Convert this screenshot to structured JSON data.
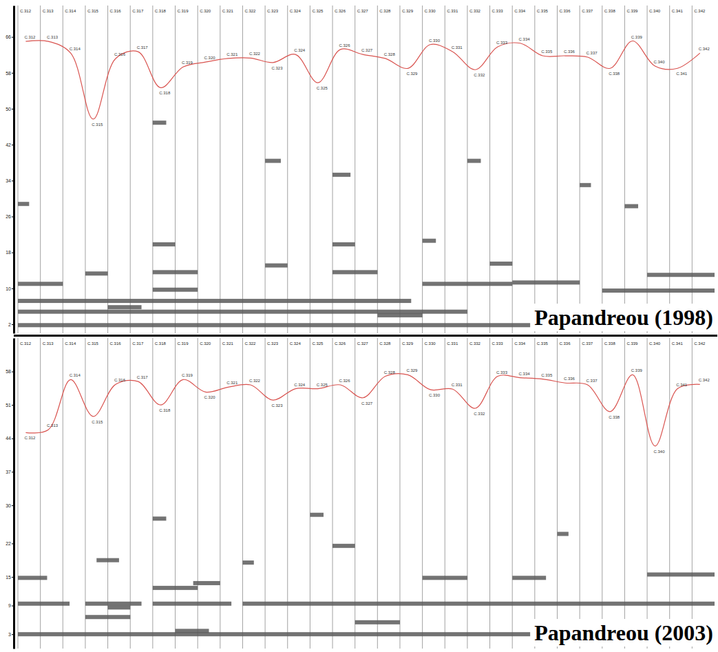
{
  "chart_data": [
    {
      "type": "line",
      "title": "Papandreou (1998)",
      "categories": [
        "C.312",
        "C.313",
        "C.314",
        "C.315",
        "C.316",
        "C.317",
        "C.318",
        "C.319",
        "C.320",
        "C.321",
        "C.322",
        "C.323",
        "C.324",
        "C.325",
        "C.326",
        "C.327",
        "C.328",
        "C.329",
        "C.330",
        "C.331",
        "C.332",
        "C.333",
        "C.334",
        "C.335",
        "C.336",
        "C.337",
        "C.338",
        "C.339",
        "C.340",
        "C.341",
        "C.342"
      ],
      "values": [
        65,
        65,
        62.4,
        47.7,
        61.2,
        62.7,
        54.7,
        59.3,
        60.4,
        61.2,
        61.3,
        60.3,
        62.1,
        55.8,
        63.2,
        62.1,
        61.2,
        59,
        64.3,
        62.7,
        58.7,
        63.8,
        64.6,
        61.8,
        61.8,
        61.5,
        59,
        65.1,
        59.5,
        59,
        62.4
      ],
      "color": "#d9534f",
      "ylim": [
        0,
        73
      ],
      "yticks": [
        2,
        10,
        18,
        26,
        34,
        42,
        50,
        58,
        66
      ],
      "partials": [
        {
          "start": 0,
          "end": 17.5,
          "y": 7.2
        },
        {
          "start": 0,
          "end": 20,
          "y": 4.8
        },
        {
          "start": 0,
          "end": 31,
          "y": 1.8
        },
        {
          "start": 0,
          "end": 2,
          "y": 11
        },
        {
          "start": 18,
          "end": 22,
          "y": 11
        },
        {
          "start": 6,
          "end": 8,
          "y": 13.6
        },
        {
          "start": 6,
          "end": 8,
          "y": 9.7
        },
        {
          "start": 14,
          "end": 16,
          "y": 13.6
        },
        {
          "start": 11,
          "end": 12,
          "y": 15.1
        },
        {
          "start": 16,
          "end": 18,
          "y": 4
        },
        {
          "start": 3,
          "end": 4,
          "y": 13.3
        },
        {
          "start": 4,
          "end": 5.5,
          "y": 5.8
        },
        {
          "start": 22,
          "end": 25,
          "y": 11.3
        },
        {
          "start": 6,
          "end": 6.6,
          "y": 46.9
        },
        {
          "start": 6,
          "end": 7,
          "y": 19.8
        },
        {
          "start": 11,
          "end": 11.7,
          "y": 38.4
        },
        {
          "start": 14,
          "end": 14.8,
          "y": 35.3
        },
        {
          "start": 14,
          "end": 15,
          "y": 19.8
        },
        {
          "start": 18,
          "end": 18.6,
          "y": 20.6
        },
        {
          "start": 20,
          "end": 20.6,
          "y": 38.4
        },
        {
          "start": 21,
          "end": 22,
          "y": 15.5
        },
        {
          "start": 27,
          "end": 27.6,
          "y": 28.3
        },
        {
          "start": 25,
          "end": 25.5,
          "y": 33
        },
        {
          "start": 0,
          "end": 0.5,
          "y": 28.8
        },
        {
          "start": 26,
          "end": 31,
          "y": 9.5
        },
        {
          "start": 28,
          "end": 31,
          "y": 13
        }
      ]
    },
    {
      "type": "line",
      "title": "Papandreou (2003)",
      "categories": [
        "C.312",
        "C.313",
        "C.314",
        "C.315",
        "C.316",
        "C.317",
        "C.318",
        "C.319",
        "C.320",
        "C.321",
        "C.322",
        "C.323",
        "C.324",
        "C.325",
        "C.326",
        "C.327",
        "C.328",
        "C.329",
        "C.330",
        "C.331",
        "C.332",
        "C.333",
        "C.334",
        "C.335",
        "C.336",
        "C.337",
        "C.338",
        "C.339",
        "C.340",
        "C.341",
        "C.342"
      ],
      "values": [
        45.2,
        45.8,
        56.3,
        48.6,
        55.3,
        55.9,
        51,
        56.3,
        53.7,
        54.7,
        55.2,
        52,
        54.4,
        54.4,
        55.2,
        52.5,
        57,
        57.3,
        54.2,
        54.3,
        50.3,
        57,
        56.7,
        56.4,
        55.6,
        55.2,
        49.6,
        57.3,
        42.4,
        54.4,
        55.3
      ],
      "color": "#d9534f",
      "ylim": [
        0,
        65
      ],
      "yticks": [
        3,
        9,
        15,
        22,
        30,
        37,
        44,
        51,
        58
      ],
      "partials": [
        {
          "start": 0,
          "end": 2.3,
          "y": 9.4
        },
        {
          "start": 3,
          "end": 5.5,
          "y": 9.4
        },
        {
          "start": 6,
          "end": 9.5,
          "y": 9.4
        },
        {
          "start": 10,
          "end": 31,
          "y": 9.4
        },
        {
          "start": 0,
          "end": 31,
          "y": 3
        },
        {
          "start": 3,
          "end": 5,
          "y": 6.6
        },
        {
          "start": 15,
          "end": 17,
          "y": 5.5
        },
        {
          "start": 0,
          "end": 1.3,
          "y": 14.8
        },
        {
          "start": 18,
          "end": 20,
          "y": 14.8
        },
        {
          "start": 22,
          "end": 23.5,
          "y": 14.8
        },
        {
          "start": 6,
          "end": 8,
          "y": 12.7
        },
        {
          "start": 7,
          "end": 8.5,
          "y": 3.7
        },
        {
          "start": 7.8,
          "end": 9,
          "y": 13.7
        },
        {
          "start": 4,
          "end": 5,
          "y": 8.6
        },
        {
          "start": 14,
          "end": 15,
          "y": 21.5
        },
        {
          "start": 10,
          "end": 10.5,
          "y": 18
        },
        {
          "start": 6,
          "end": 6.6,
          "y": 27.2
        },
        {
          "start": 28,
          "end": 31,
          "y": 15.5
        },
        {
          "start": 3.5,
          "end": 4.5,
          "y": 18.5
        },
        {
          "start": 13,
          "end": 13.6,
          "y": 28
        },
        {
          "start": 24,
          "end": 24.5,
          "y": 24
        }
      ]
    }
  ]
}
